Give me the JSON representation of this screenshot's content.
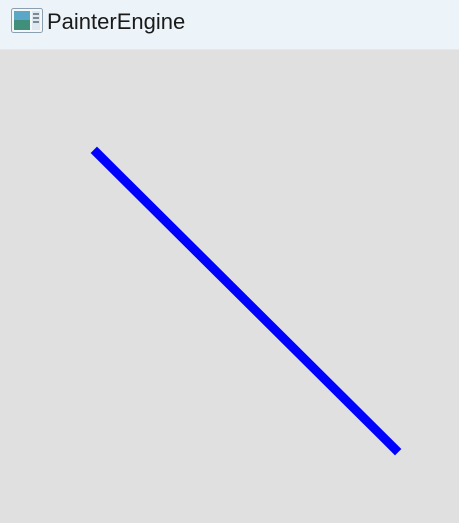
{
  "window": {
    "title": "PainterEngine",
    "icon": "app-window-icon"
  },
  "canvas": {
    "background": "#e0e0e0",
    "line_color": "#0000ff",
    "line_color_name": "blue"
  }
}
